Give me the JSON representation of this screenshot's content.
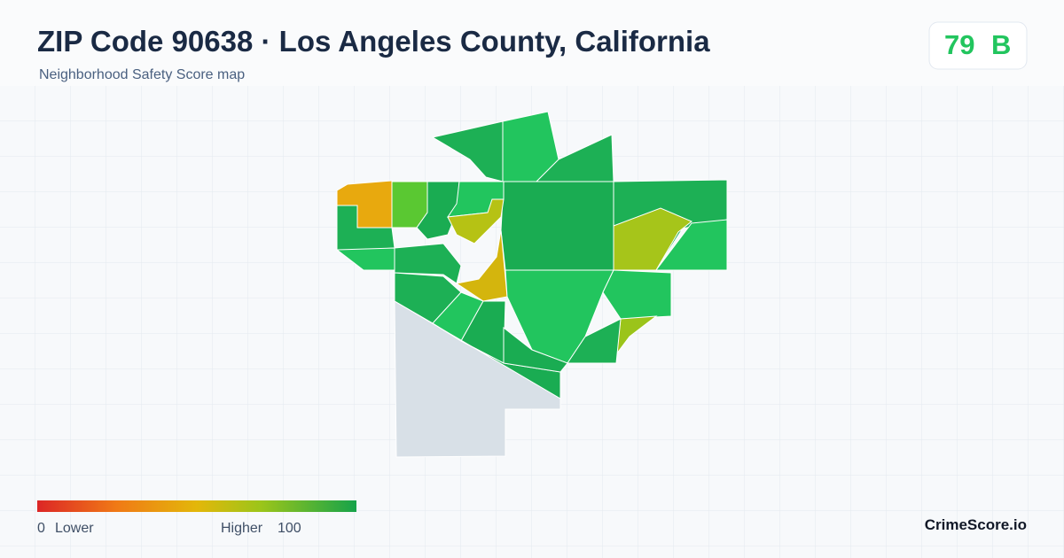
{
  "header": {
    "title": "ZIP Code 90638 · Los Angeles County, California",
    "subtitle": "Neighborhood Safety Score map"
  },
  "score": {
    "value": 79,
    "grade": "B"
  },
  "legend": {
    "min": 0,
    "min_label": "Lower",
    "max_label": "Higher",
    "max": 100
  },
  "brand": "CrimeScore.io"
}
